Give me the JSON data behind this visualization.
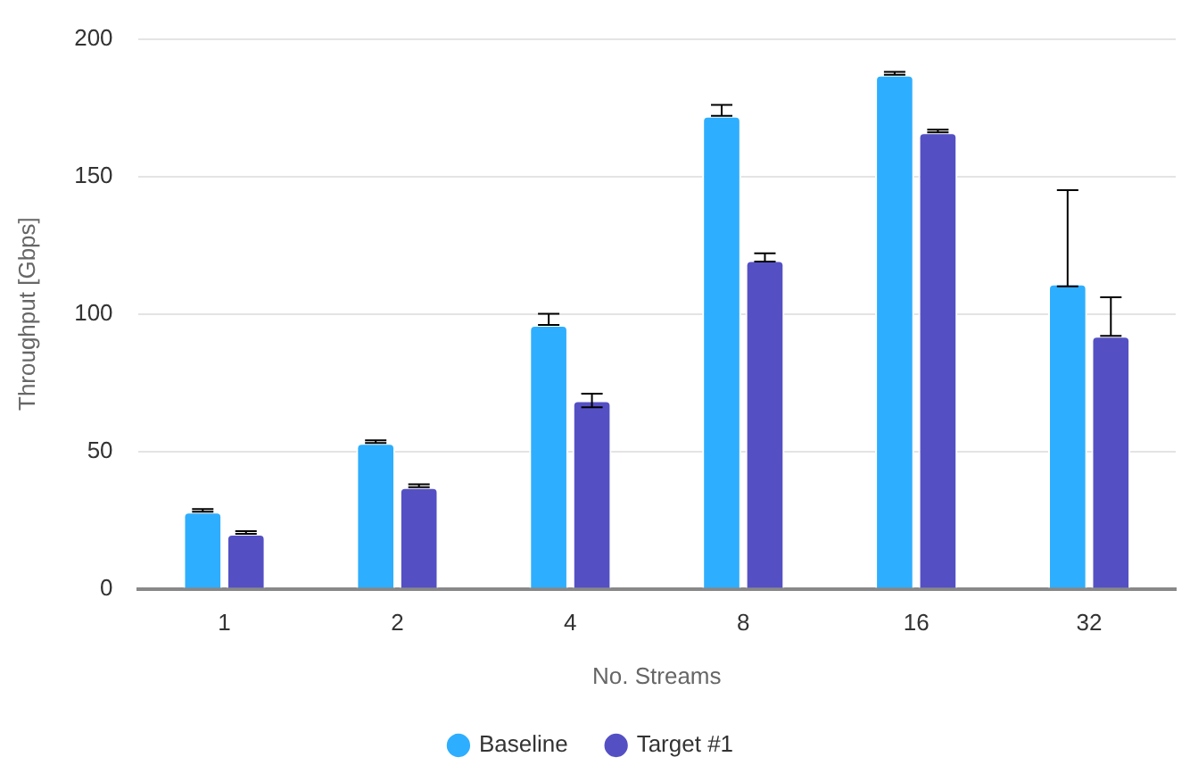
{
  "chart_data": {
    "type": "bar",
    "xlabel": "No. Streams",
    "ylabel": "Throughput [Gbps]",
    "categories": [
      "1",
      "2",
      "4",
      "8",
      "16",
      "32"
    ],
    "series": [
      {
        "name": "Baseline",
        "color": "#2eaefe",
        "values": [
          28,
          53,
          96,
          172,
          187,
          111
        ],
        "errors": [
          [
            28,
            29
          ],
          [
            53,
            54
          ],
          [
            96,
            100
          ],
          [
            172,
            176
          ],
          [
            187,
            188
          ],
          [
            110,
            145
          ]
        ]
      },
      {
        "name": "Target #1",
        "color": "#5450c4",
        "values": [
          20,
          37,
          68.5,
          119.5,
          166,
          92
        ],
        "errors": [
          [
            20,
            21
          ],
          [
            37,
            38
          ],
          [
            66,
            71
          ],
          [
            119,
            122
          ],
          [
            166,
            167
          ],
          [
            92,
            106
          ]
        ]
      }
    ],
    "ylim": [
      0,
      200
    ],
    "yticks": [
      0,
      50,
      100,
      150,
      200
    ],
    "grid": "y",
    "legend": "bottom"
  }
}
